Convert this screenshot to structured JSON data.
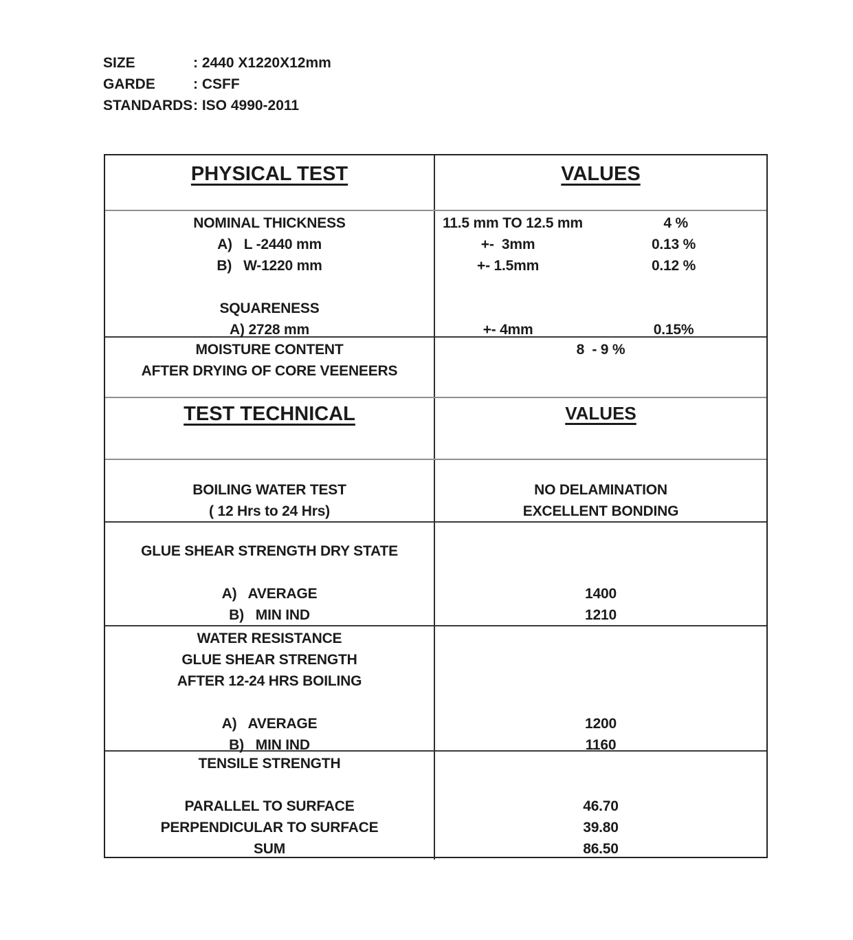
{
  "colors": {
    "text": "#1b1b1b",
    "border_dark": "#2e2e2e",
    "border_gray": "#8f8f8f",
    "background": "#ffffff"
  },
  "header_info": [
    {
      "label": "SIZE",
      "value": ": 2440 X1220X12mm"
    },
    {
      "label": "GARDE",
      "value": ": CSFF"
    },
    {
      "label": "STANDARDS",
      "value": ": ISO 4990-2011"
    }
  ],
  "table": {
    "header1": {
      "test": "PHYSICAL TEST",
      "values": "VALUES"
    },
    "dimensions": {
      "left": [
        "NOMINAL THICKNESS",
        "A)   L -2440 mm",
        "B)   W-1220 mm",
        "",
        "SQUARENESS",
        "A) 2728 mm"
      ],
      "right": [
        {
          "a": "11.5 mm TO 12.5 mm",
          "b": "4 %"
        },
        {
          "a": "+-  3mm",
          "b": "0.13 %"
        },
        {
          "a": "+- 1.5mm",
          "b": "0.12 %"
        },
        {
          "a": "",
          "b": ""
        },
        {
          "a": "",
          "b": ""
        },
        {
          "a": "+- 4mm",
          "b": "0.15%"
        }
      ]
    },
    "moisture": {
      "left": [
        "MOISTURE CONTENT",
        "AFTER DRYING OF CORE VEENEERS"
      ],
      "right": [
        "8  - 9 %",
        ""
      ]
    },
    "header2": {
      "test": "TEST TECHNICAL",
      "values": "VALUES"
    },
    "boiling": {
      "left": [
        "BOILING WATER TEST",
        "( 12 Hrs to 24 Hrs)"
      ],
      "right": [
        "NO DELAMINATION",
        "EXCELLENT BONDING"
      ]
    },
    "glue_dry": {
      "left": [
        "GLUE SHEAR STRENGTH DRY STATE",
        "",
        "A)   AVERAGE",
        "B)   MIN IND"
      ],
      "right": [
        "",
        "",
        "1400",
        "1210"
      ]
    },
    "water_resistance": {
      "left": [
        "WATER RESISTANCE",
        "GLUE SHEAR STRENGTH",
        "AFTER 12-24 HRS BOILING",
        "",
        "A)   AVERAGE",
        "B)   MIN IND"
      ],
      "right": [
        "",
        "",
        "",
        "",
        "1200",
        "1160"
      ]
    },
    "tensile": {
      "left": [
        "TENSILE STRENGTH",
        "",
        "PARALLEL TO SURFACE",
        "PERPENDICULAR TO SURFACE",
        "SUM"
      ],
      "right": [
        "",
        "",
        "46.70",
        "39.80",
        "86.50"
      ]
    }
  }
}
